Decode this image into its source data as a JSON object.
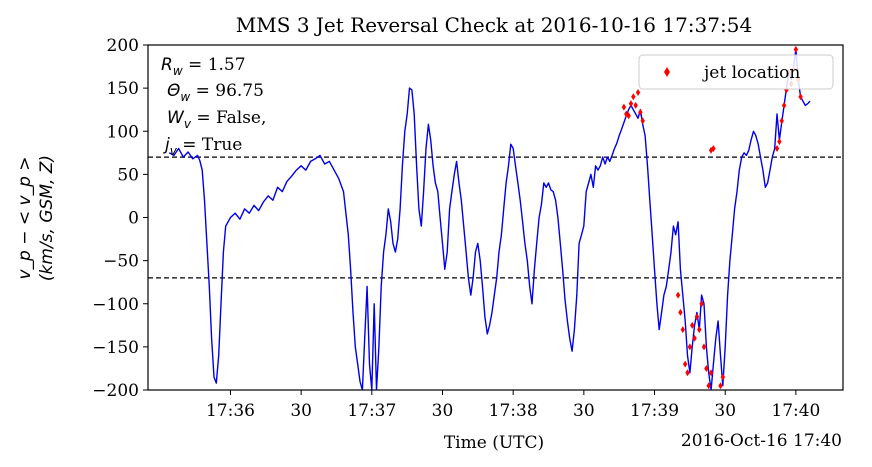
{
  "chart_data": {
    "type": "line",
    "title": "MMS 3 Jet Reversal Check at 2016-10-16 17:37:54",
    "xlabel": "Time (UTC)",
    "x_offset_label": "2016-Oct-16 17:40",
    "ylabel_line1": "v_p − < v_p >",
    "ylabel_line2": "(km/s, GSM, Z)",
    "xlim_seconds_after_17_35": [
      25,
      320
    ],
    "ylim": [
      -200,
      200
    ],
    "x_ticks": [
      {
        "t": 60,
        "label": "17:36"
      },
      {
        "t": 90,
        "label": "30"
      },
      {
        "t": 120,
        "label": "17:37"
      },
      {
        "t": 150,
        "label": "30"
      },
      {
        "t": 180,
        "label": "17:38"
      },
      {
        "t": 210,
        "label": "30"
      },
      {
        "t": 240,
        "label": "17:39"
      },
      {
        "t": 270,
        "label": "30"
      },
      {
        "t": 300,
        "label": "17:40"
      }
    ],
    "y_ticks": [
      200,
      150,
      100,
      50,
      0,
      -50,
      -100,
      -150,
      -200
    ],
    "threshold_lines": [
      70,
      -70
    ],
    "legend": {
      "position": "top-right",
      "label": "jet location",
      "marker": "diamond",
      "color": "#ff0000"
    },
    "line_color": "#0000ee",
    "annotations": [
      {
        "sym": "R",
        "sub": "w",
        "text": " = 1.57"
      },
      {
        "sym": "Θ",
        "sub": "w",
        "text": " = 96.75"
      },
      {
        "sym": "W",
        "sub": "v",
        "text": " = False,"
      },
      {
        "sym": "j",
        "sub": "v",
        "text": " = True"
      }
    ],
    "series": [
      {
        "kind": "line",
        "points": [
          [
            34,
            75
          ],
          [
            36,
            72
          ],
          [
            38,
            80
          ],
          [
            40,
            70
          ],
          [
            42,
            76
          ],
          [
            44,
            68
          ],
          [
            46,
            72
          ],
          [
            47,
            66
          ],
          [
            48,
            55
          ],
          [
            49,
            20
          ],
          [
            50,
            -30
          ],
          [
            51,
            -80
          ],
          [
            52,
            -140
          ],
          [
            53,
            -185
          ],
          [
            54,
            -192
          ],
          [
            55,
            -160
          ],
          [
            56,
            -100
          ],
          [
            57,
            -40
          ],
          [
            58,
            -10
          ],
          [
            59,
            -5
          ],
          [
            60,
            0
          ],
          [
            62,
            5
          ],
          [
            64,
            -2
          ],
          [
            66,
            10
          ],
          [
            68,
            5
          ],
          [
            70,
            14
          ],
          [
            72,
            8
          ],
          [
            74,
            18
          ],
          [
            76,
            25
          ],
          [
            78,
            20
          ],
          [
            80,
            35
          ],
          [
            82,
            30
          ],
          [
            84,
            42
          ],
          [
            86,
            48
          ],
          [
            88,
            55
          ],
          [
            90,
            60
          ],
          [
            92,
            55
          ],
          [
            94,
            65
          ],
          [
            96,
            68
          ],
          [
            98,
            72
          ],
          [
            100,
            62
          ],
          [
            102,
            65
          ],
          [
            104,
            55
          ],
          [
            106,
            45
          ],
          [
            108,
            30
          ],
          [
            110,
            -20
          ],
          [
            111,
            -60
          ],
          [
            112,
            -110
          ],
          [
            113,
            -150
          ],
          [
            114,
            -170
          ],
          [
            115,
            -190
          ],
          [
            116,
            -200
          ],
          [
            117,
            -140
          ],
          [
            118,
            -80
          ],
          [
            119,
            -170
          ],
          [
            120,
            -200
          ],
          [
            121,
            -100
          ],
          [
            122,
            -200
          ],
          [
            123,
            -150
          ],
          [
            124,
            -80
          ],
          [
            125,
            -40
          ],
          [
            126,
            -20
          ],
          [
            127,
            10
          ],
          [
            128,
            -5
          ],
          [
            129,
            -30
          ],
          [
            130,
            -40
          ],
          [
            131,
            -25
          ],
          [
            132,
            10
          ],
          [
            133,
            60
          ],
          [
            134,
            100
          ],
          [
            135,
            120
          ],
          [
            136,
            150
          ],
          [
            137,
            148
          ],
          [
            138,
            120
          ],
          [
            139,
            60
          ],
          [
            140,
            10
          ],
          [
            141,
            -10
          ],
          [
            142,
            30
          ],
          [
            143,
            80
          ],
          [
            144,
            108
          ],
          [
            145,
            90
          ],
          [
            146,
            60
          ],
          [
            147,
            40
          ],
          [
            148,
            30
          ],
          [
            149,
            0
          ],
          [
            150,
            -30
          ],
          [
            151,
            -60
          ],
          [
            152,
            -40
          ],
          [
            153,
            10
          ],
          [
            154,
            30
          ],
          [
            155,
            50
          ],
          [
            156,
            65
          ],
          [
            157,
            40
          ],
          [
            158,
            20
          ],
          [
            159,
            -10
          ],
          [
            160,
            -40
          ],
          [
            161,
            -70
          ],
          [
            162,
            -90
          ],
          [
            163,
            -70
          ],
          [
            164,
            -40
          ],
          [
            165,
            -30
          ],
          [
            166,
            -50
          ],
          [
            167,
            -80
          ],
          [
            168,
            -115
          ],
          [
            169,
            -135
          ],
          [
            170,
            -125
          ],
          [
            171,
            -110
          ],
          [
            172,
            -90
          ],
          [
            173,
            -70
          ],
          [
            174,
            -40
          ],
          [
            175,
            -20
          ],
          [
            176,
            10
          ],
          [
            177,
            40
          ],
          [
            178,
            60
          ],
          [
            179,
            85
          ],
          [
            180,
            80
          ],
          [
            181,
            60
          ],
          [
            182,
            40
          ],
          [
            183,
            20
          ],
          [
            184,
            -5
          ],
          [
            185,
            -30
          ],
          [
            186,
            -50
          ],
          [
            187,
            -80
          ],
          [
            188,
            -100
          ],
          [
            189,
            -60
          ],
          [
            190,
            -30
          ],
          [
            191,
            0
          ],
          [
            192,
            15
          ],
          [
            193,
            40
          ],
          [
            194,
            35
          ],
          [
            195,
            40
          ],
          [
            196,
            32
          ],
          [
            197,
            30
          ],
          [
            198,
            20
          ],
          [
            199,
            0
          ],
          [
            200,
            -30
          ],
          [
            201,
            -60
          ],
          [
            202,
            -95
          ],
          [
            203,
            -120
          ],
          [
            204,
            -140
          ],
          [
            205,
            -155
          ],
          [
            206,
            -130
          ],
          [
            207,
            -90
          ],
          [
            208,
            -30
          ],
          [
            209,
            -20
          ],
          [
            210,
            -10
          ],
          [
            211,
            30
          ],
          [
            212,
            40
          ],
          [
            213,
            50
          ],
          [
            214,
            35
          ],
          [
            215,
            60
          ],
          [
            216,
            55
          ],
          [
            217,
            60
          ],
          [
            218,
            70
          ],
          [
            219,
            62
          ],
          [
            220,
            70
          ],
          [
            221,
            65
          ],
          [
            222,
            72
          ],
          [
            223,
            80
          ],
          [
            224,
            86
          ],
          [
            225,
            95
          ],
          [
            226,
            102
          ],
          [
            227,
            110
          ],
          [
            228,
            118
          ],
          [
            229,
            125
          ],
          [
            230,
            130
          ],
          [
            231,
            125
          ],
          [
            232,
            120
          ],
          [
            233,
            115
          ],
          [
            234,
            125
          ],
          [
            235,
            108
          ],
          [
            236,
            95
          ],
          [
            237,
            60
          ],
          [
            238,
            20
          ],
          [
            239,
            -20
          ],
          [
            240,
            -60
          ],
          [
            241,
            -100
          ],
          [
            242,
            -130
          ],
          [
            243,
            -110
          ],
          [
            244,
            -90
          ],
          [
            245,
            -80
          ],
          [
            246,
            -60
          ],
          [
            247,
            -40
          ],
          [
            248,
            -10
          ],
          [
            249,
            -20
          ],
          [
            250,
            -5
          ],
          [
            251,
            -60
          ],
          [
            252,
            -90
          ],
          [
            253,
            -120
          ],
          [
            254,
            -160
          ],
          [
            255,
            -180
          ],
          [
            256,
            -150
          ],
          [
            257,
            -125
          ],
          [
            258,
            -110
          ],
          [
            259,
            -130
          ],
          [
            260,
            -90
          ],
          [
            261,
            -100
          ],
          [
            262,
            -150
          ],
          [
            263,
            -180
          ],
          [
            264,
            -200
          ],
          [
            265,
            -170
          ],
          [
            266,
            -140
          ],
          [
            267,
            -120
          ],
          [
            268,
            -160
          ],
          [
            269,
            -195
          ],
          [
            270,
            -150
          ],
          [
            271,
            -90
          ],
          [
            272,
            -50
          ],
          [
            273,
            -20
          ],
          [
            274,
            10
          ],
          [
            275,
            30
          ],
          [
            276,
            55
          ],
          [
            277,
            70
          ],
          [
            278,
            75
          ],
          [
            279,
            72
          ],
          [
            280,
            78
          ],
          [
            281,
            90
          ],
          [
            282,
            100
          ],
          [
            283,
            95
          ],
          [
            284,
            85
          ],
          [
            285,
            70
          ],
          [
            286,
            55
          ],
          [
            287,
            35
          ],
          [
            288,
            40
          ],
          [
            289,
            55
          ],
          [
            290,
            70
          ],
          [
            291,
            80
          ],
          [
            292,
            120
          ],
          [
            293,
            90
          ],
          [
            294,
            110
          ],
          [
            295,
            130
          ],
          [
            296,
            150
          ],
          [
            297,
            170
          ],
          [
            298,
            160
          ],
          [
            299,
            175
          ],
          [
            300,
            195
          ],
          [
            301,
            160
          ],
          [
            302,
            140
          ],
          [
            303,
            135
          ],
          [
            304,
            130
          ],
          [
            305,
            132
          ],
          [
            306,
            135
          ]
        ]
      },
      {
        "kind": "scatter",
        "name": "jet location",
        "points": [
          [
            227,
            128
          ],
          [
            228,
            120
          ],
          [
            229,
            118
          ],
          [
            230,
            132
          ],
          [
            231,
            140
          ],
          [
            232,
            130
          ],
          [
            233,
            145
          ],
          [
            234,
            122
          ],
          [
            235,
            112
          ],
          [
            264,
            78
          ],
          [
            265,
            80
          ],
          [
            292,
            80
          ],
          [
            293,
            88
          ],
          [
            294,
            112
          ],
          [
            295,
            130
          ],
          [
            296,
            148
          ],
          [
            297,
            168
          ],
          [
            298,
            155
          ],
          [
            299,
            172
          ],
          [
            300,
            195
          ],
          [
            301,
            160
          ],
          [
            302,
            140
          ],
          [
            250,
            -90
          ],
          [
            251,
            -110
          ],
          [
            252,
            -130
          ],
          [
            253,
            -170
          ],
          [
            254,
            -180
          ],
          [
            255,
            -150
          ],
          [
            256,
            -125
          ],
          [
            257,
            -140
          ],
          [
            258,
            -115
          ],
          [
            259,
            -130
          ],
          [
            260,
            -100
          ],
          [
            261,
            -150
          ],
          [
            262,
            -175
          ],
          [
            263,
            -195
          ],
          [
            264,
            -180
          ],
          [
            268,
            -195
          ],
          [
            269,
            -185
          ]
        ]
      }
    ]
  }
}
